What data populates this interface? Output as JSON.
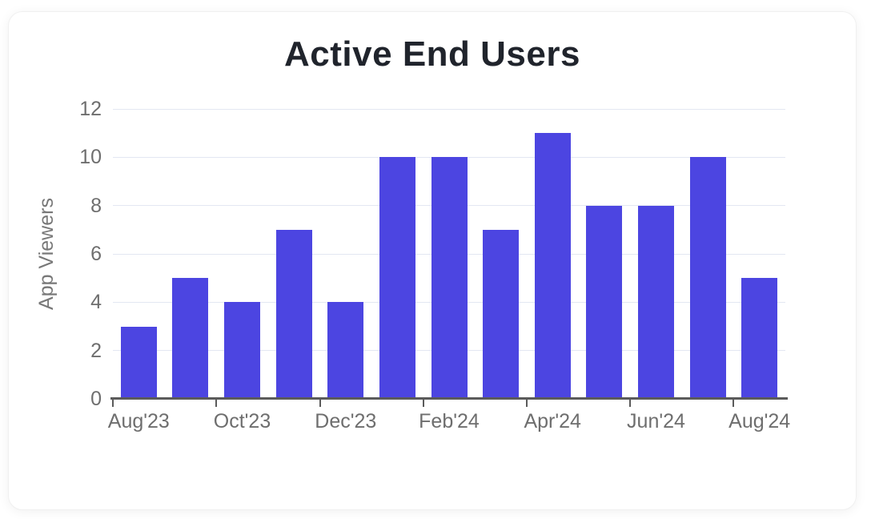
{
  "chart_data": {
    "type": "bar",
    "title": "Active End Users",
    "ylabel": "App Viewers",
    "xlabel": "",
    "values": [
      3,
      5,
      4,
      7,
      4,
      10,
      10,
      7,
      11,
      8,
      8,
      10,
      5
    ],
    "x_tick_labels": [
      "Aug'23",
      "Oct'23",
      "Dec'23",
      "Feb'24",
      "Apr'24",
      "Jun'24",
      "Aug'24"
    ],
    "x_tick_slot_indices": [
      0,
      2,
      4,
      6,
      8,
      10,
      12
    ],
    "y_ticks": [
      0,
      2,
      4,
      6,
      8,
      10,
      12
    ],
    "ylim": [
      0,
      12
    ],
    "grid": "horizontal",
    "legend": "none",
    "bar_color": "#4c45e1",
    "grid_color": "#e3e7f2",
    "axis_line_color": "#5b5b5b",
    "tick_text_color": "#6e6e6e",
    "title_color": "#20242c"
  }
}
